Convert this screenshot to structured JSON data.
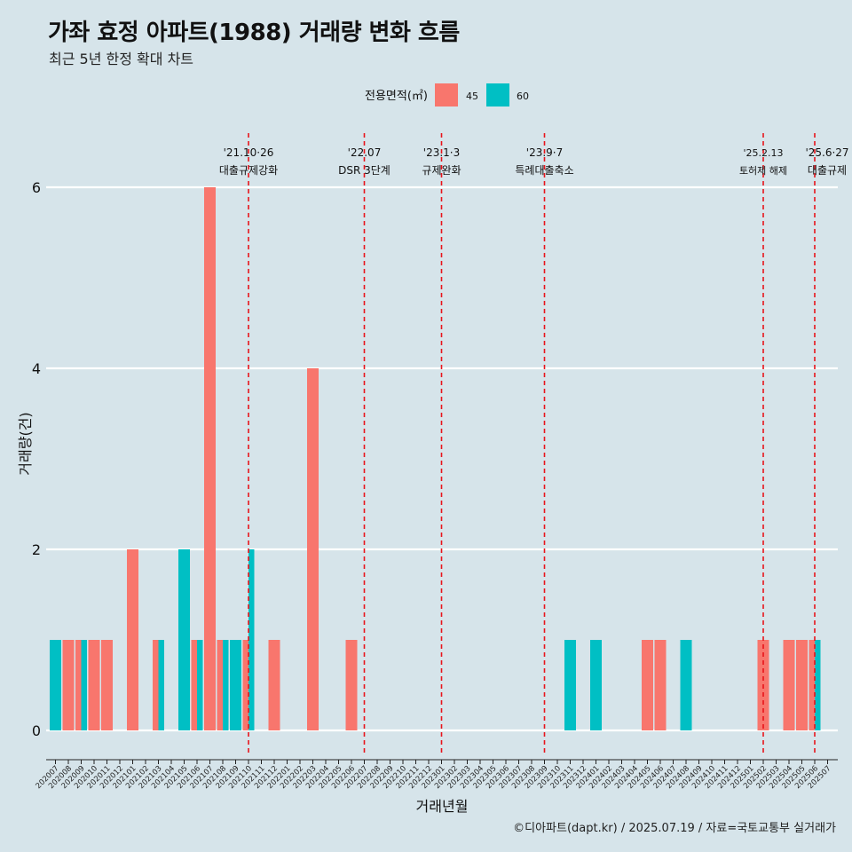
{
  "title": "가좌 효정 아파트(1988) 거래량 변화 흐름",
  "subtitle": "최근 5년 한정 확대 차트",
  "caption": "©디아파트(dapt.kr) / 2025.07.19 / 자료=국토교통부 실거래가",
  "colors": {
    "background": "#d6e4ea",
    "grid": "#ffffff",
    "event_line": "#e8141b",
    "series_45": "#f8766d",
    "series_60": "#00bfc4"
  },
  "chart_data": {
    "type": "bar",
    "xlabel": "거래년월",
    "ylabel": "거래량(건)",
    "ylim": [
      0,
      6
    ],
    "yticks": [
      0,
      2,
      4,
      6
    ],
    "grid": true,
    "legend": {
      "title": "전용면적(㎡)",
      "position": "top",
      "entries": [
        "45",
        "60"
      ]
    },
    "categories": [
      "202007",
      "202008",
      "202009",
      "202010",
      "202011",
      "202012",
      "202101",
      "202102",
      "202103",
      "202104",
      "202105",
      "202106",
      "202107",
      "202108",
      "202109",
      "202110",
      "202111",
      "202112",
      "202201",
      "202202",
      "202203",
      "202204",
      "202205",
      "202206",
      "202207",
      "202208",
      "202209",
      "202210",
      "202211",
      "202212",
      "202301",
      "202302",
      "202303",
      "202304",
      "202305",
      "202306",
      "202307",
      "202308",
      "202309",
      "202310",
      "202311",
      "202312",
      "202401",
      "202402",
      "202403",
      "202404",
      "202405",
      "202406",
      "202407",
      "202408",
      "202409",
      "202410",
      "202411",
      "202412",
      "202501",
      "202502",
      "202503",
      "202504",
      "202505",
      "202506",
      "202507"
    ],
    "series": [
      {
        "name": "45",
        "values": [
          0,
          1,
          1,
          1,
          1,
          0,
          2,
          0,
          1,
          0,
          0,
          1,
          6,
          1,
          0,
          1,
          0,
          1,
          0,
          0,
          4,
          0,
          0,
          1,
          0,
          0,
          0,
          0,
          0,
          0,
          0,
          0,
          0,
          0,
          0,
          0,
          0,
          0,
          0,
          0,
          0,
          0,
          0,
          0,
          0,
          0,
          1,
          1,
          0,
          0,
          0,
          0,
          0,
          0,
          0,
          1,
          0,
          1,
          1,
          1,
          0
        ]
      },
      {
        "name": "60",
        "values": [
          1,
          0,
          1,
          0,
          0,
          0,
          0,
          0,
          1,
          0,
          2,
          1,
          0,
          1,
          1,
          2,
          0,
          0,
          0,
          0,
          0,
          0,
          0,
          0,
          0,
          0,
          0,
          0,
          0,
          0,
          0,
          0,
          0,
          0,
          0,
          0,
          0,
          0,
          0,
          0,
          1,
          0,
          1,
          0,
          0,
          0,
          0,
          0,
          0,
          1,
          0,
          0,
          0,
          0,
          0,
          0,
          0,
          0,
          0,
          1,
          0
        ]
      }
    ],
    "events": [
      {
        "category": "202110",
        "date": "'21.10·26",
        "label": "대출규제강화"
      },
      {
        "category": "202207",
        "date": "'22.07",
        "label": "DSR 3단계"
      },
      {
        "category": "202301",
        "date": "'23.1·3",
        "label": "규제완화"
      },
      {
        "category": "202309",
        "date": "'23.9·7",
        "label": "특례대출축소"
      },
      {
        "category": "202502",
        "date": "'25.2.13",
        "label": "토허제 해제"
      },
      {
        "category": "202506",
        "date": "'25.6·27",
        "label": "대출규제"
      }
    ]
  }
}
